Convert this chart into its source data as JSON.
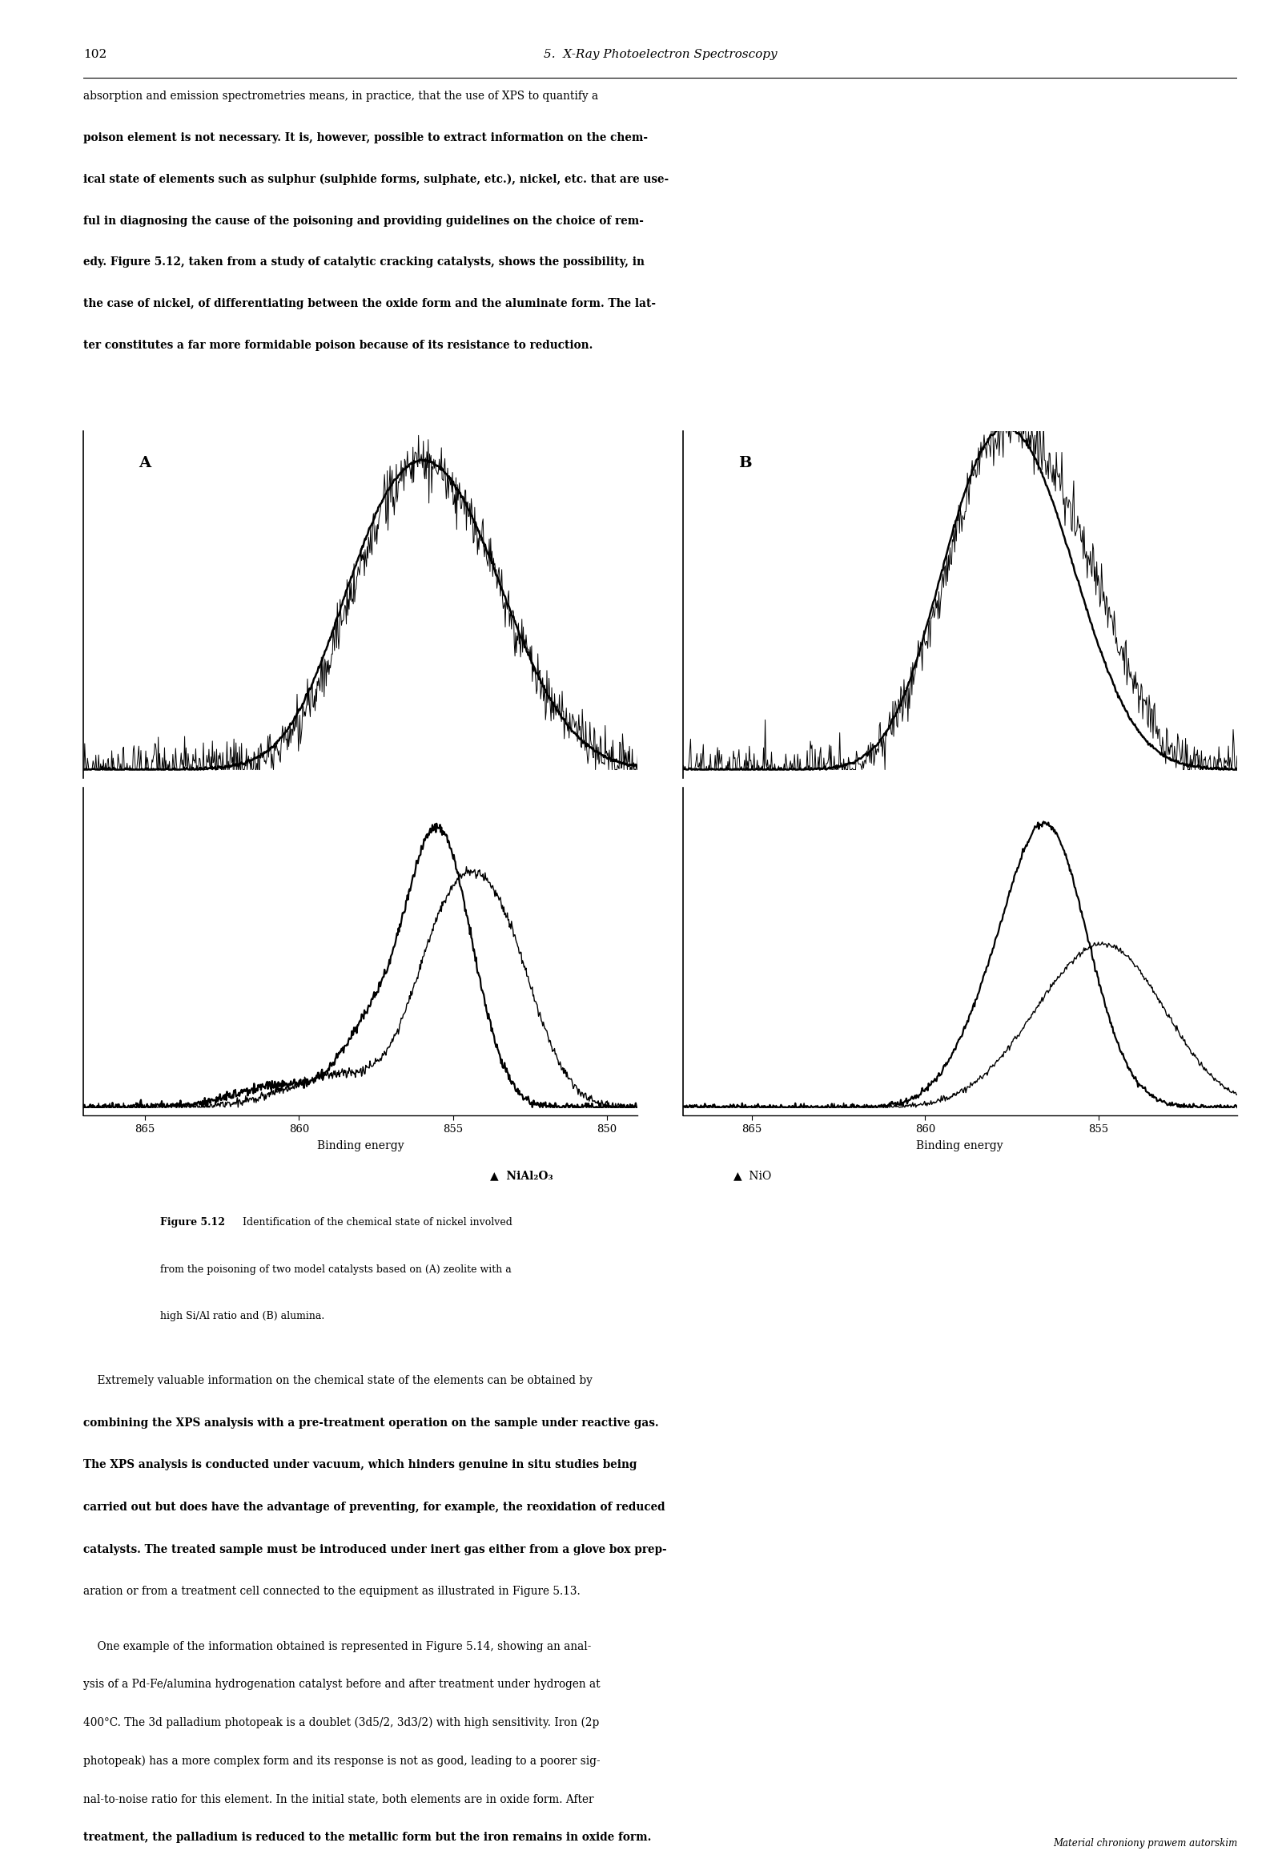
{
  "page_number": "102",
  "header_title": "5.  X-Ray Photoelectron Spectroscopy",
  "body_text_1_lines": [
    [
      "absorption and emission spectrometries means, in practice, that the use of XPS to quantify a",
      "normal"
    ],
    [
      "poison element is not necessary. It is, however, possible to extract information on the chem-",
      "bold"
    ],
    [
      "ical state of elements such as sulphur (sulphide forms, sulphate, etc.), nickel, etc. that are use-",
      "bold"
    ],
    [
      "ful in diagnosing the cause of the poisoning and providing guidelines on the choice of rem-",
      "bold"
    ],
    [
      "edy. Figure 5.12, taken from a study of catalytic cracking catalysts, shows the possibility, in",
      "bold"
    ],
    [
      "the case of nickel, of differentiating between the oxide form and the aluminate form. The lat-",
      "bold"
    ],
    [
      "ter constitutes a far more formidable poison because of its resistance to reduction.",
      "bold"
    ]
  ],
  "body_text_2_lines": [
    [
      "    Extremely valuable information on the chemical state of the elements can be obtained by",
      "normal"
    ],
    [
      "combining the XPS analysis with a pre-treatment operation on the sample under reactive gas.",
      "bold"
    ],
    [
      "The XPS analysis is conducted under vacuum, which hinders genuine in situ studies being",
      "bold"
    ],
    [
      "carried out but does have the advantage of preventing, for example, the reoxidation of reduced",
      "bold"
    ],
    [
      "catalysts. The treated sample must be introduced under inert gas either from a glove box prep-",
      "bold"
    ],
    [
      "aration or from a treatment cell connected to the equipment as illustrated in Figure 5.13.",
      "normal"
    ]
  ],
  "body_text_3_lines": [
    [
      "    One example of the information obtained is represented in Figure 5.14, showing an anal-",
      "normal"
    ],
    [
      "ysis of a Pd-Fe/alumina hydrogenation catalyst before and after treatment under hydrogen at",
      "normal"
    ],
    [
      "400°C. The 3d palladium photopeak is a doublet (3d5/2, 3d3/2) with high sensitivity. Iron (2p",
      "normal"
    ],
    [
      "photopeak) has a more complex form and its response is not as good, leading to a poorer sig-",
      "normal"
    ],
    [
      "nal-to-noise ratio for this element. In the initial state, both elements are in oxide form. After",
      "normal"
    ],
    [
      "treatment, the palladium is reduced to the metallic form but the iron remains in oxide form.",
      "bold"
    ]
  ],
  "footer_text": "Material chroniony prawem autorskim",
  "figure_caption_bold": "Figure 5.12",
  "figure_caption_rest": "  Identification of the chemical state of nickel involved\nfrom the poisoning of two model catalysts based on (A) zeolite with a\nhigh Si/Al ratio and (B) alumina.",
  "legend_label1": "▲  NiAl₂O₃",
  "legend_label2": "▲  NiO",
  "subplot_A_label": "A",
  "subplot_B_label": "B",
  "xlabel": "Binding energy",
  "x_ticks_A": [
    865,
    860,
    855,
    850
  ],
  "x_ticks_B": [
    865,
    860,
    855
  ],
  "background_color": "#ffffff",
  "text_color": "#000000",
  "line_color": "#000000"
}
